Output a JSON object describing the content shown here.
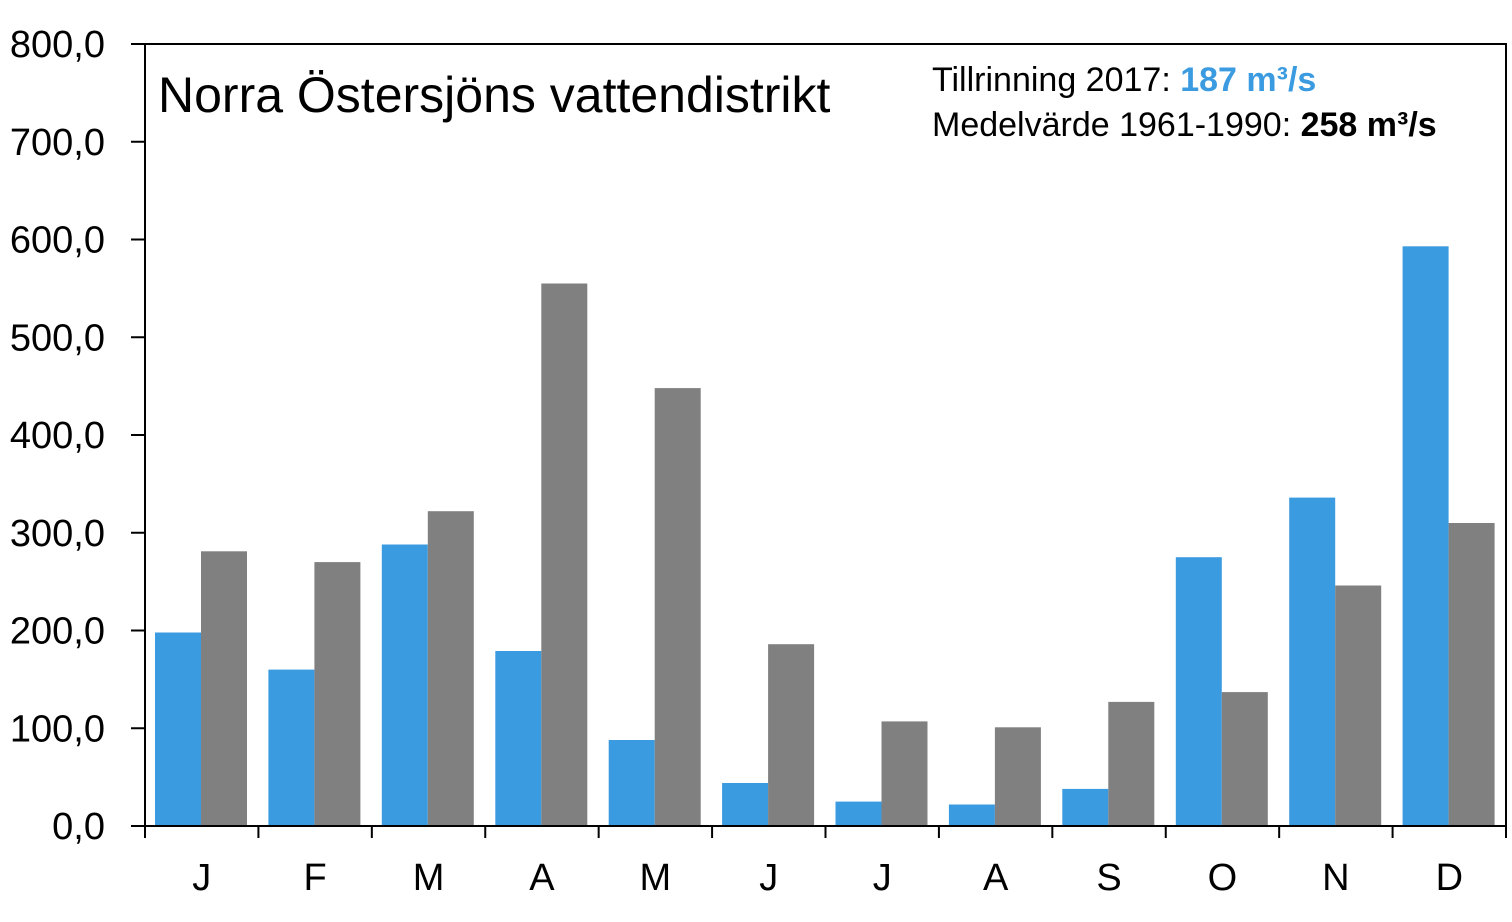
{
  "chart_data": {
    "type": "bar",
    "title": "Norra Östersjöns vattendistrikt",
    "categories": [
      "J",
      "F",
      "M",
      "A",
      "M",
      "J",
      "J",
      "A",
      "S",
      "O",
      "N",
      "D"
    ],
    "series": [
      {
        "values": [
          198,
          160,
          288,
          179,
          88,
          44,
          25,
          22,
          38,
          275,
          336,
          593
        ],
        "color": "#3B9BE0"
      },
      {
        "values": [
          281,
          270,
          322,
          555,
          448,
          186,
          107,
          101,
          127,
          137,
          246,
          310
        ],
        "color": "#808080"
      }
    ],
    "ylim": [
      0,
      800
    ],
    "yticks": [
      0,
      100,
      200,
      300,
      400,
      500,
      600,
      700,
      800
    ],
    "ytick_labels": [
      "0,0",
      "100,0",
      "200,0",
      "300,0",
      "400,0",
      "500,0",
      "600,0",
      "700,0",
      "800,0"
    ],
    "grid": false,
    "legend": {
      "line1_label": "Tillrinning 2017: ",
      "line1_value": "187 m³/s",
      "line1_color": "#3B9BE0",
      "line2_label": "Medelvärde 1961-1990: ",
      "line2_value": "258 m³/s"
    }
  }
}
